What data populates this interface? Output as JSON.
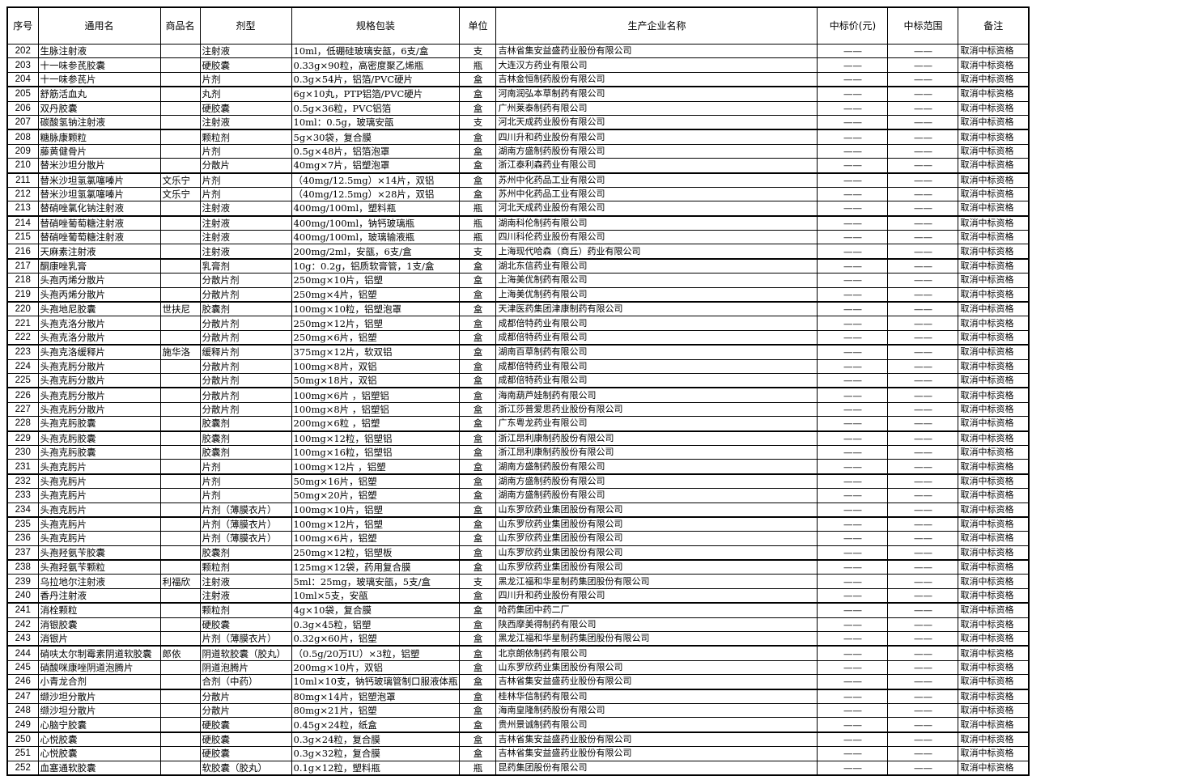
{
  "table": {
    "headers": [
      "序号",
      "通用名",
      "商品名",
      "剂型",
      "规格包装",
      "单位",
      "生产企业名称",
      "中标价(元)",
      "中标范围",
      "备注"
    ],
    "rows": [
      [
        "202",
        "生脉注射液",
        "",
        "注射液",
        "10ml，低硼硅玻璃安瓿，6支/盒",
        "支",
        "吉林省集安益盛药业股份有限公司",
        "——",
        "——",
        "取消中标资格"
      ],
      [
        "203",
        "十一味参芪胶囊",
        "",
        "硬胶囊",
        "0.33g×90粒，高密度聚乙烯瓶",
        "瓶",
        "大连汉方药业有限公司",
        "——",
        "——",
        "取消中标资格"
      ],
      [
        "204",
        "十一味参芪片",
        "",
        "片剂",
        "0.3g×54片，铝箔/PVC硬片",
        "盒",
        "吉林金恒制药股份有限公司",
        "——",
        "——",
        "取消中标资格"
      ],
      [
        "205",
        "舒筋活血丸",
        "",
        "丸剂",
        "6g×10丸，PTP铝箔/PVC硬片",
        "盒",
        "河南润弘本草制药有限公司",
        "——",
        "——",
        "取消中标资格"
      ],
      [
        "206",
        "双丹胶囊",
        "",
        "硬胶囊",
        "0.5g×36粒，PVC铝箔",
        "盒",
        "广州莱泰制药有限公司",
        "——",
        "——",
        "取消中标资格"
      ],
      [
        "207",
        "碳酸氢钠注射液",
        "",
        "注射液",
        "10ml：0.5g，玻璃安瓿",
        "支",
        "河北天成药业股份有限公司",
        "——",
        "——",
        "取消中标资格"
      ],
      [
        "208",
        "糖脉康颗粒",
        "",
        "颗粒剂",
        "5g×30袋，复合膜",
        "盒",
        "四川升和药业股份有限公司",
        "——",
        "——",
        "取消中标资格"
      ],
      [
        "209",
        "藤黄健骨片",
        "",
        "片剂",
        "0.5g×48片，铝箔泡罩",
        "盒",
        "湖南方盛制药股份有限公司",
        "——",
        "——",
        "取消中标资格"
      ],
      [
        "210",
        "替米沙坦分散片",
        "",
        "分散片",
        "40mg×7片，铝塑泡罩",
        "盒",
        "浙江泰利森药业有限公司",
        "——",
        "——",
        "取消中标资格"
      ],
      [
        "211",
        "替米沙坦氢氯噻嗪片",
        "文乐宁",
        "片剂",
        "（40mg/12.5mg）×14片，双铝",
        "盒",
        "苏州中化药品工业有限公司",
        "——",
        "——",
        "取消中标资格"
      ],
      [
        "212",
        "替米沙坦氢氯噻嗪片",
        "文乐宁",
        "片剂",
        "（40mg/12.5mg）×28片，双铝",
        "盒",
        "苏州中化药品工业有限公司",
        "——",
        "——",
        "取消中标资格"
      ],
      [
        "213",
        "替硝唑氯化钠注射液",
        "",
        "注射液",
        "400mg/100ml，塑料瓶",
        "瓶",
        "河北天成药业股份有限公司",
        "——",
        "——",
        "取消中标资格"
      ],
      [
        "214",
        "替硝唑葡萄糖注射液",
        "",
        "注射液",
        "400mg/100ml，钠钙玻璃瓶",
        "瓶",
        "湖南科伦制药有限公司",
        "——",
        "——",
        "取消中标资格"
      ],
      [
        "215",
        "替硝唑葡萄糖注射液",
        "",
        "注射液",
        "400mg/100ml，玻璃输液瓶",
        "瓶",
        "四川科伦药业股份有限公司",
        "——",
        "——",
        "取消中标资格"
      ],
      [
        "216",
        "天麻素注射液",
        "",
        "注射液",
        "200mg/2ml，安瓿，6支/盒",
        "支",
        "上海现代哈森（商丘）药业有限公司",
        "——",
        "——",
        "取消中标资格"
      ],
      [
        "217",
        "酮康唑乳膏",
        "",
        "乳膏剂",
        "10g：0.2g，铝质软膏管，1支/盒",
        "盒",
        "湖北东信药业有限公司",
        "——",
        "——",
        "取消中标资格"
      ],
      [
        "218",
        "头孢丙烯分散片",
        "",
        "分散片剂",
        "250mg×10片，铝塑",
        "盒",
        "上海美优制药有限公司",
        "——",
        "——",
        "取消中标资格"
      ],
      [
        "219",
        "头孢丙烯分散片",
        "",
        "分散片剂",
        "250mg×4片，铝塑",
        "盒",
        "上海美优制药有限公司",
        "——",
        "——",
        "取消中标资格"
      ],
      [
        "220",
        "头孢地尼胶囊",
        "世扶尼",
        "胶囊剂",
        "100mg×10粒，铝塑泡罩",
        "盒",
        "天津医药集团津康制药有限公司",
        "——",
        "——",
        "取消中标资格"
      ],
      [
        "221",
        "头孢克洛分散片",
        "",
        "分散片剂",
        "250mg×12片，铝塑",
        "盒",
        "成都倍特药业有限公司",
        "——",
        "——",
        "取消中标资格"
      ],
      [
        "222",
        "头孢克洛分散片",
        "",
        "分散片剂",
        "250mg×6片，铝塑",
        "盒",
        "成都倍特药业有限公司",
        "——",
        "——",
        "取消中标资格"
      ],
      [
        "223",
        "头孢克洛缓释片",
        "施华洛",
        "缓释片剂",
        "375mg×12片，软双铝",
        "盒",
        "湖南百草制药有限公司",
        "——",
        "——",
        "取消中标资格"
      ],
      [
        "224",
        "头孢克肟分散片",
        "",
        "分散片剂",
        "100mg×8片，双铝",
        "盒",
        "成都倍特药业有限公司",
        "——",
        "——",
        "取消中标资格"
      ],
      [
        "225",
        "头孢克肟分散片",
        "",
        "分散片剂",
        "50mg×18片，双铝",
        "盒",
        "成都倍特药业有限公司",
        "——",
        "——",
        "取消中标资格"
      ],
      [
        "226",
        "头孢克肟分散片",
        "",
        "分散片剂",
        "100mg×6片 ，铝塑铝",
        "盒",
        "海南葫芦娃制药有限公司",
        "——",
        "——",
        "取消中标资格"
      ],
      [
        "227",
        "头孢克肟分散片",
        "",
        "分散片剂",
        "100mg×8片 ，铝塑铝",
        "盒",
        "浙江莎普爱思药业股份有限公司",
        "——",
        "——",
        "取消中标资格"
      ],
      [
        "228",
        "头孢克肟胶囊",
        "",
        "胶囊剂",
        "200mg×6粒 ，铝塑",
        "盒",
        "广东粤龙药业有限公司",
        "——",
        "——",
        "取消中标资格"
      ],
      [
        "229",
        "头孢克肟胶囊",
        "",
        "胶囊剂",
        "100mg×12粒，铝塑铝",
        "盒",
        "浙江昂利康制药股份有限公司",
        "——",
        "——",
        "取消中标资格"
      ],
      [
        "230",
        "头孢克肟胶囊",
        "",
        "胶囊剂",
        "100mg×16粒，铝塑铝",
        "盒",
        "浙江昂利康制药股份有限公司",
        "——",
        "——",
        "取消中标资格"
      ],
      [
        "231",
        "头孢克肟片",
        "",
        "片剂",
        "100mg×12片 ，铝塑",
        "盒",
        "湖南方盛制药股份有限公司",
        "——",
        "——",
        "取消中标资格"
      ],
      [
        "232",
        "头孢克肟片",
        "",
        "片剂",
        "50mg×16片，铝塑",
        "盒",
        "湖南方盛制药股份有限公司",
        "——",
        "——",
        "取消中标资格"
      ],
      [
        "233",
        "头孢克肟片",
        "",
        "片剂",
        "50mg×20片，铝塑",
        "盒",
        "湖南方盛制药股份有限公司",
        "——",
        "——",
        "取消中标资格"
      ],
      [
        "234",
        "头孢克肟片",
        "",
        "片剂（薄膜衣片）",
        "100mg×10片，铝塑",
        "盒",
        "山东罗欣药业集团股份有限公司",
        "——",
        "——",
        "取消中标资格"
      ],
      [
        "235",
        "头孢克肟片",
        "",
        "片剂（薄膜衣片）",
        "100mg×12片，铝塑",
        "盒",
        "山东罗欣药业集团股份有限公司",
        "——",
        "——",
        "取消中标资格"
      ],
      [
        "236",
        "头孢克肟片",
        "",
        "片剂（薄膜衣片）",
        "100mg×6片，铝塑",
        "盒",
        "山东罗欣药业集团股份有限公司",
        "——",
        "——",
        "取消中标资格"
      ],
      [
        "237",
        "头孢羟氨苄胶囊",
        "",
        "胶囊剂",
        "250mg×12粒，铝塑板",
        "盒",
        "山东罗欣药业集团股份有限公司",
        "——",
        "——",
        "取消中标资格"
      ],
      [
        "238",
        "头孢羟氨苄颗粒",
        "",
        "颗粒剂",
        "125mg×12袋，药用复合膜",
        "盒",
        "山东罗欣药业集团股份有限公司",
        "——",
        "——",
        "取消中标资格"
      ],
      [
        "239",
        "乌拉地尔注射液",
        "利福欣",
        "注射液",
        "5ml：25mg，玻璃安瓿，5支/盒",
        "支",
        "黑龙江福和华星制药集团股份有限公司",
        "——",
        "——",
        "取消中标资格"
      ],
      [
        "240",
        "香丹注射液",
        "",
        "注射液",
        "10ml×5支，安瓿",
        "盒",
        "四川升和药业股份有限公司",
        "——",
        "——",
        "取消中标资格"
      ],
      [
        "241",
        "消栓颗粒",
        "",
        "颗粒剂",
        "4g×10袋，复合膜",
        "盒",
        "哈药集团中药二厂",
        "——",
        "——",
        "取消中标资格"
      ],
      [
        "242",
        "消银胶囊",
        "",
        "硬胶囊",
        "0.3g×45粒，铝塑",
        "盒",
        "陕西摩美得制药有限公司",
        "——",
        "——",
        "取消中标资格"
      ],
      [
        "243",
        "消银片",
        "",
        "片剂（薄膜衣片）",
        "0.32g×60片，铝塑",
        "盒",
        "黑龙江福和华星制药集团股份有限公司",
        "——",
        "——",
        "取消中标资格"
      ],
      [
        "244",
        "硝呋太尔制霉素阴道软胶囊",
        "郎依",
        "阴道软胶囊（胶丸）",
        "（0.5g/20万IU）×3粒，铝塑",
        "盒",
        "北京朗依制药有限公司",
        "——",
        "——",
        "取消中标资格"
      ],
      [
        "245",
        "硝酸咪康唑阴道泡腾片",
        "",
        "阴道泡腾片",
        "200mg×10片，双铝",
        "盒",
        "山东罗欣药业集团股份有限公司",
        "——",
        "——",
        "取消中标资格"
      ],
      [
        "246",
        "小青龙合剂",
        "",
        "合剂（中药）",
        "10ml×10支，钠钙玻璃管制口服液体瓶",
        "盒",
        "吉林省集安益盛药业股份有限公司",
        "——",
        "——",
        "取消中标资格"
      ],
      [
        "247",
        "缬沙坦分散片",
        "",
        "分散片",
        "80mg×14片，铝塑泡罩",
        "盒",
        "桂林华信制药有限公司",
        "——",
        "——",
        "取消中标资格"
      ],
      [
        "248",
        "缬沙坦分散片",
        "",
        "分散片",
        "80mg×21片，铝塑",
        "盒",
        "海南皇隆制药股份有限公司",
        "——",
        "——",
        "取消中标资格"
      ],
      [
        "249",
        "心脑宁胶囊",
        "",
        "硬胶囊",
        "0.45g×24粒，纸盒",
        "盒",
        "贵州景诚制药有限公司",
        "——",
        "——",
        "取消中标资格"
      ],
      [
        "250",
        "心悦胶囊",
        "",
        "硬胶囊",
        "0.3g×24粒，复合膜",
        "盒",
        "吉林省集安益盛药业股份有限公司",
        "——",
        "——",
        "取消中标资格"
      ],
      [
        "251",
        "心悦胶囊",
        "",
        "硬胶囊",
        "0.3g×32粒，复合膜",
        "盒",
        "吉林省集安益盛药业股份有限公司",
        "——",
        "——",
        "取消中标资格"
      ],
      [
        "252",
        "血塞通软胶囊",
        "",
        "软胶囊（胶丸）",
        "0.1g×12粒，塑料瓶",
        "瓶",
        "昆药集团股份有限公司",
        "——",
        "——",
        "取消中标资格"
      ]
    ]
  }
}
